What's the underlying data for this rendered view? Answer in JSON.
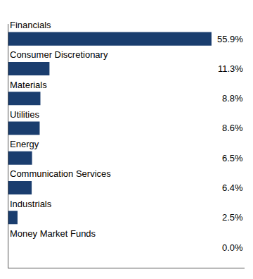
{
  "chart_data": {
    "type": "bar",
    "orientation": "horizontal",
    "categories": [
      "Financials",
      "Consumer Discretionary",
      "Materials",
      "Utilities",
      "Energy",
      "Communication Services",
      "Industrials",
      "Money Market Funds"
    ],
    "values": [
      55.9,
      11.3,
      8.8,
      8.6,
      6.5,
      6.4,
      2.5,
      0.0
    ],
    "value_labels": [
      "55.9%",
      "11.3%",
      "8.8%",
      "8.6%",
      "6.5%",
      "6.4%",
      "2.5%",
      "0.0%"
    ],
    "color": "#1a3d6e",
    "xlim": [
      0,
      65
    ],
    "data_labels": true,
    "tick_labels": false,
    "grid": false
  }
}
